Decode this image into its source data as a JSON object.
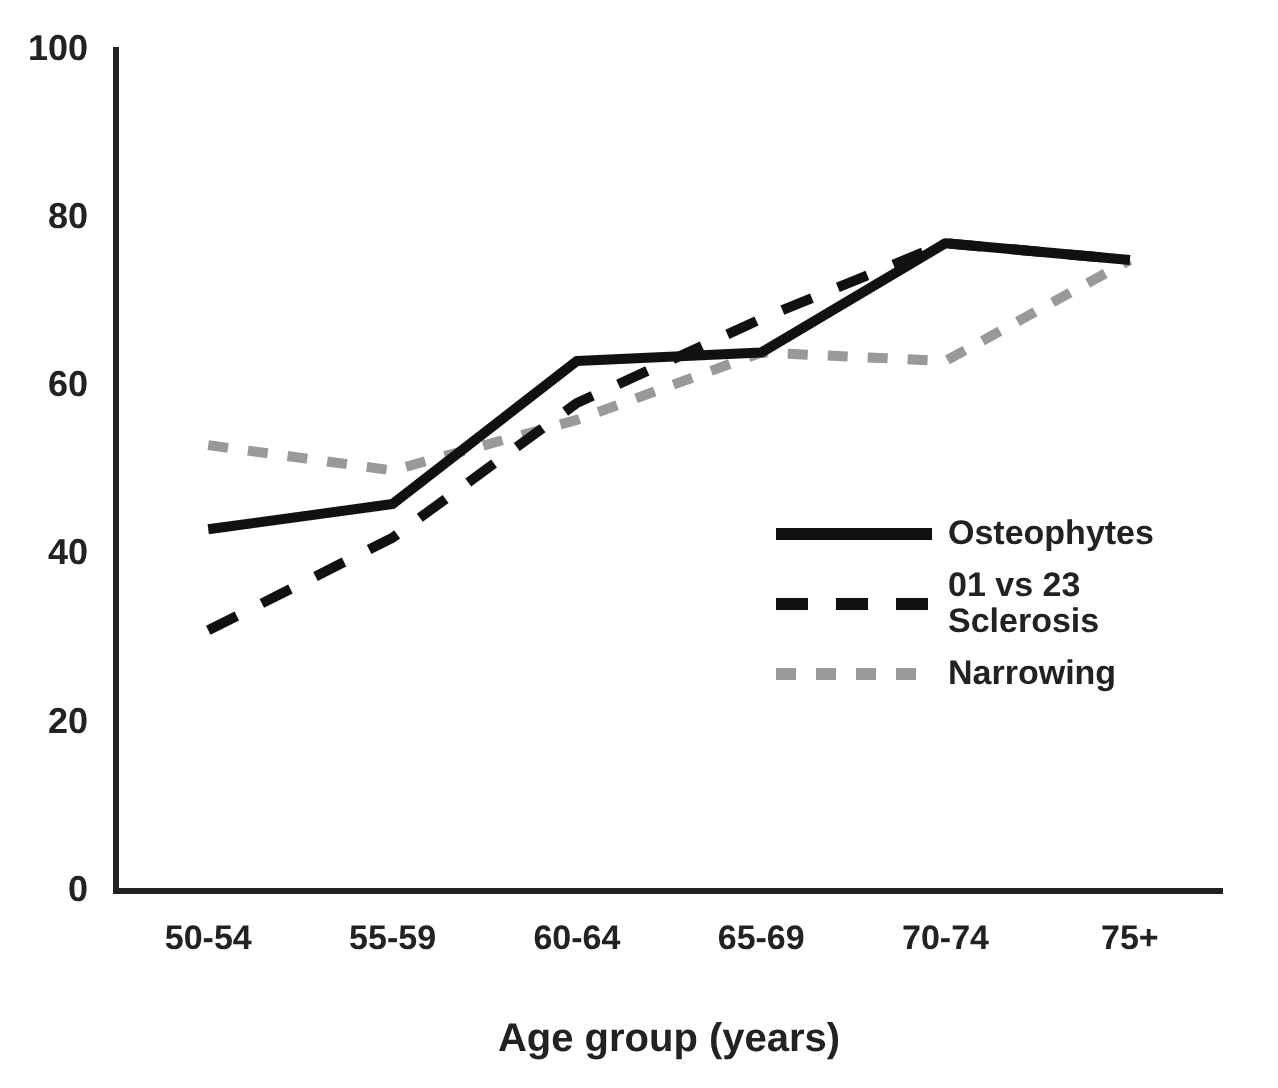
{
  "chart_data": {
    "type": "line",
    "xlabel": "Age group (years)",
    "categories": [
      "50-54",
      "55-59",
      "60-64",
      "65-69",
      "70-74",
      "75+"
    ],
    "series": [
      {
        "name": "Osteophytes",
        "color": "#111111",
        "line_style": "solid",
        "values": [
          43,
          46,
          63,
          64,
          77,
          75
        ]
      },
      {
        "name": "01 vs 23 Sclerosis",
        "color": "#111111",
        "line_style": "dashed",
        "values": [
          31,
          42,
          58,
          68,
          77,
          75
        ]
      },
      {
        "name": "Narrowing",
        "color": "#999999",
        "line_style": "dotted",
        "values": [
          53,
          50,
          56,
          64,
          63,
          75
        ]
      }
    ],
    "ylim": [
      0,
      100
    ],
    "yticks": [
      0,
      20,
      40,
      60,
      80,
      100
    ],
    "grid": false,
    "legend": "right",
    "marker": "none"
  }
}
